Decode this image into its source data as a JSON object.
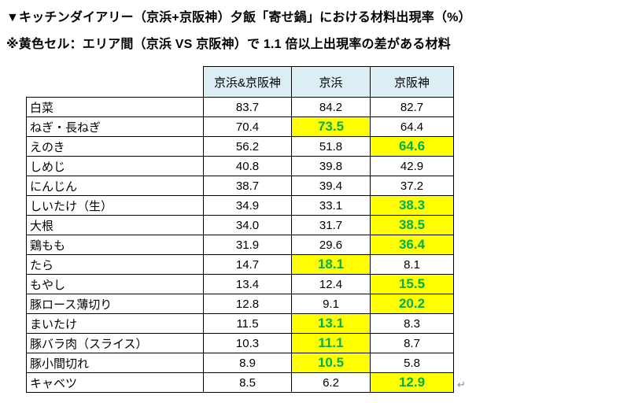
{
  "title": "▼キッチンダイアリー（京浜+京阪神）夕飯「寄せ鍋」における材料出現率（%）",
  "subtitle": "※黄色セル：エリア間（京浜 VS 京阪神）で 1.1 倍以上出現率の差がある材料",
  "colors": {
    "header_bg": "#daeef3",
    "highlight_bg": "#ffff00",
    "highlight_text": "#00b050",
    "border": "#000000",
    "text": "#000000"
  },
  "paragraph_mark": "↵",
  "chart_data": {
    "type": "table",
    "title": "▼キッチンダイアリー（京浜+京阪神）夕飯「寄せ鍋」における材料出現率（%）",
    "subtitle": "※黄色セル：エリア間（京浜 VS 京阪神）で 1.1 倍以上出現率の差がある材料",
    "unit": "%",
    "columns": [
      "京浜&京阪神",
      "京浜",
      "京阪神"
    ],
    "highlight_rule": "エリア間で1.1倍以上出現率の差がある材料のセルを黄色で強調",
    "rows": [
      {
        "label": "白菜",
        "values": [
          83.7,
          84.2,
          82.7
        ],
        "highlight": null
      },
      {
        "label": "ねぎ・長ねぎ",
        "values": [
          70.4,
          73.5,
          64.4
        ],
        "highlight": 1
      },
      {
        "label": "えのき",
        "values": [
          56.2,
          51.8,
          64.6
        ],
        "highlight": 2
      },
      {
        "label": "しめじ",
        "values": [
          40.8,
          39.8,
          42.9
        ],
        "highlight": null
      },
      {
        "label": "にんじん",
        "values": [
          38.7,
          39.4,
          37.2
        ],
        "highlight": null
      },
      {
        "label": "しいたけ（生）",
        "values": [
          34.9,
          33.1,
          38.3
        ],
        "highlight": 2
      },
      {
        "label": "大根",
        "values": [
          34.0,
          31.7,
          38.5
        ],
        "highlight": 2
      },
      {
        "label": "鶏もも",
        "values": [
          31.9,
          29.6,
          36.4
        ],
        "highlight": 2
      },
      {
        "label": "たら",
        "values": [
          14.7,
          18.1,
          8.1
        ],
        "highlight": 1
      },
      {
        "label": "もやし",
        "values": [
          13.4,
          12.4,
          15.5
        ],
        "highlight": 2
      },
      {
        "label": "豚ロース薄切り",
        "values": [
          12.8,
          9.1,
          20.2
        ],
        "highlight": 2
      },
      {
        "label": "まいたけ",
        "values": [
          11.5,
          13.1,
          8.3
        ],
        "highlight": 1
      },
      {
        "label": "豚バラ肉（スライス）",
        "values": [
          10.3,
          11.1,
          8.7
        ],
        "highlight": 1
      },
      {
        "label": "豚小間切れ",
        "values": [
          8.9,
          10.5,
          5.8
        ],
        "highlight": 1
      },
      {
        "label": "キャベツ",
        "values": [
          8.5,
          6.2,
          12.9
        ],
        "highlight": 2
      }
    ]
  }
}
